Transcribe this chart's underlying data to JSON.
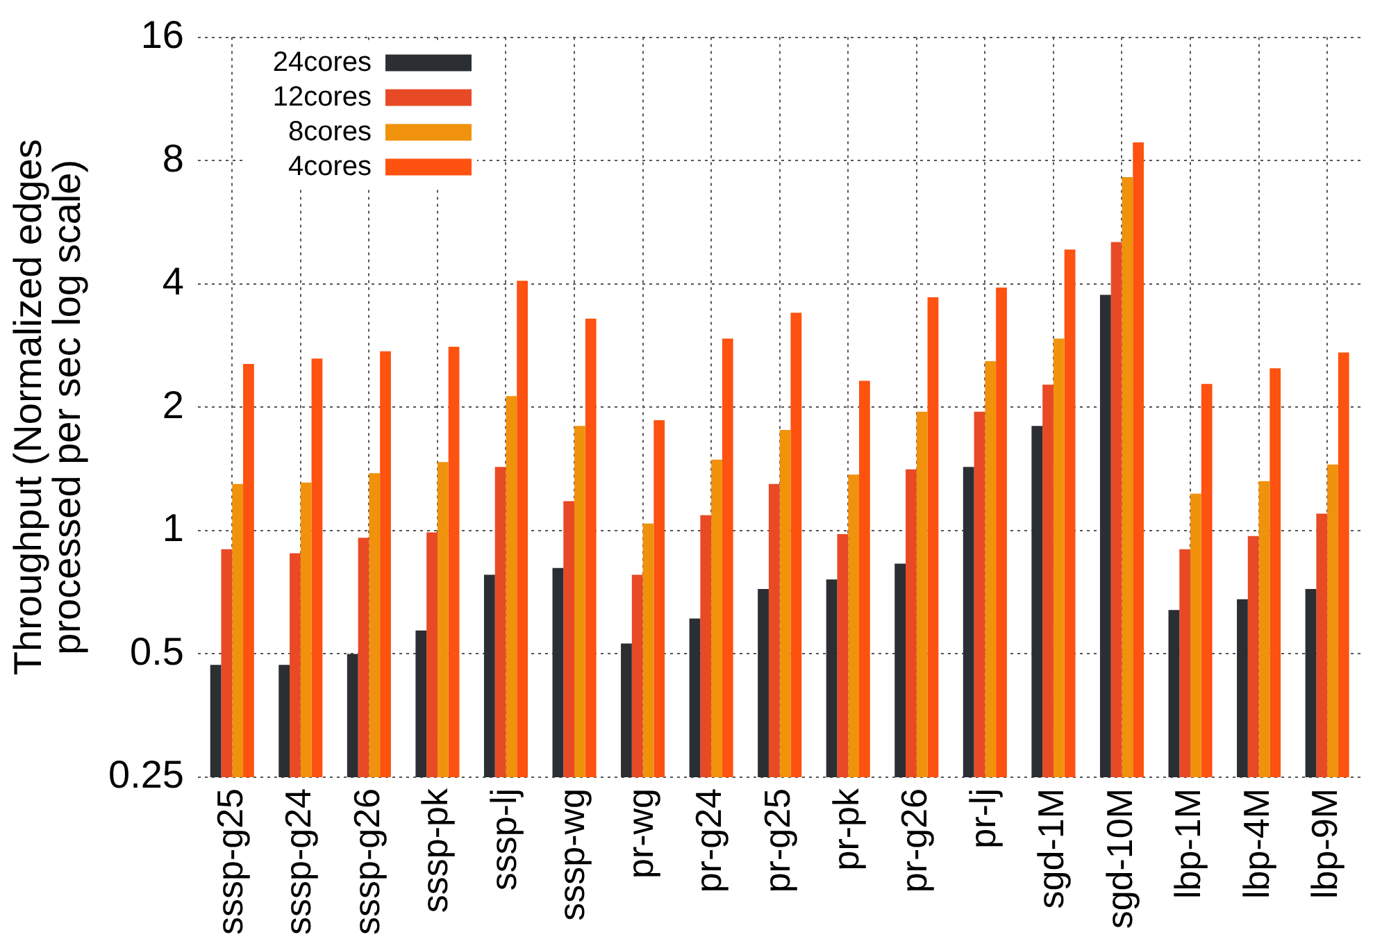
{
  "chart_data": {
    "type": "bar",
    "ylabel": "Throughput (Normalized edges processed per sec log scale)",
    "categories": [
      "sssp-g25",
      "sssp-g24",
      "sssp-g26",
      "sssp-pk",
      "sssp-lj",
      "sssp-wg",
      "pr-wg",
      "pr-g24",
      "pr-g25",
      "pr-pk",
      "pr-g26",
      "pr-lj",
      "sgd-1M",
      "sgd-10M",
      "lbp-1M",
      "lbp-4M",
      "lbp-9M"
    ],
    "series": [
      {
        "name": "24cores",
        "color": "#2b2e33",
        "values": [
          0.47,
          0.47,
          0.5,
          0.57,
          0.78,
          0.81,
          0.53,
          0.61,
          0.72,
          0.76,
          0.83,
          1.43,
          1.8,
          3.76,
          0.64,
          0.68,
          0.72
        ]
      },
      {
        "name": "12cores",
        "color": "#e84a25",
        "values": [
          0.9,
          0.88,
          0.96,
          0.99,
          1.43,
          1.18,
          0.78,
          1.09,
          1.3,
          0.98,
          1.41,
          1.95,
          2.27,
          5.06,
          0.9,
          0.97,
          1.1
        ]
      },
      {
        "name": "8cores",
        "color": "#f0920c",
        "values": [
          1.3,
          1.31,
          1.38,
          1.47,
          2.13,
          1.8,
          1.04,
          1.49,
          1.76,
          1.37,
          1.95,
          2.59,
          2.94,
          7.29,
          1.23,
          1.32,
          1.45
        ]
      },
      {
        "name": "4cores",
        "color": "#fd5210",
        "values": [
          2.55,
          2.63,
          2.74,
          2.81,
          4.07,
          3.29,
          1.86,
          2.94,
          3.4,
          2.32,
          3.71,
          3.92,
          4.85,
          8.86,
          2.28,
          2.49,
          2.72
        ]
      }
    ],
    "log": "y",
    "ylim": [
      0.25,
      16
    ],
    "yticks": [
      0.25,
      0.5,
      1,
      2,
      4,
      8,
      16
    ],
    "grid": true,
    "legend": "top left"
  }
}
